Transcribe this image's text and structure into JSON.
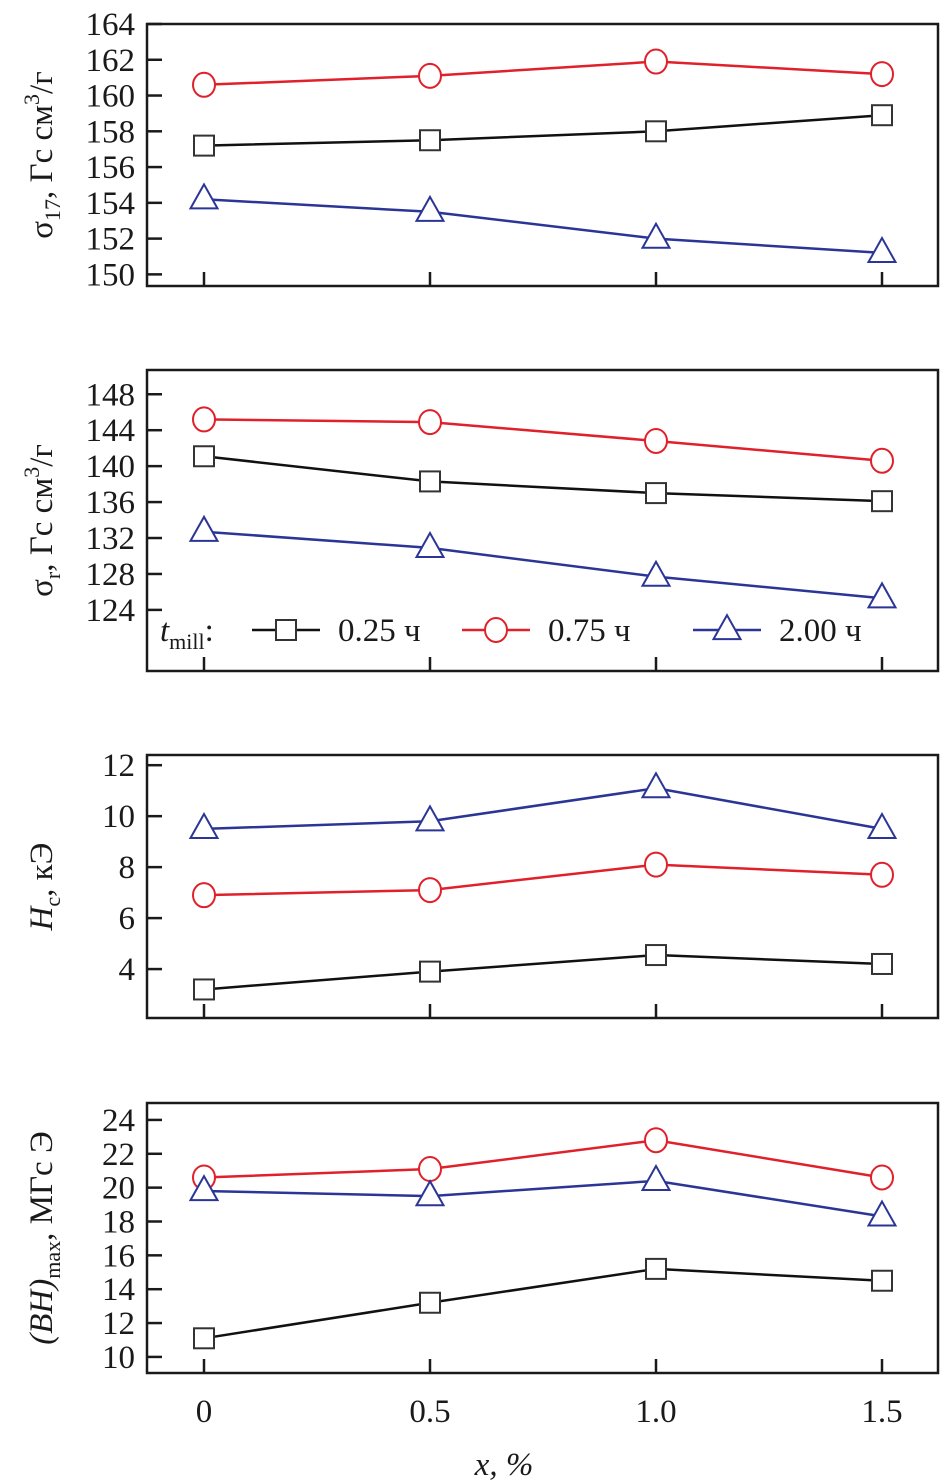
{
  "chart_data": [
    {
      "type": "line",
      "title": "",
      "ylabel": "σ17, Гс см³/г",
      "ylabel_parts": {
        "main": "σ",
        "sub": "17",
        "unit": ", Гс см",
        "sup": "3",
        "tail": "/г"
      },
      "xlabel": "",
      "x": [
        0,
        0.5,
        1.0,
        1.5
      ],
      "xlim": [
        -0.13,
        1.62
      ],
      "ylim": [
        164,
        149.35
      ],
      "yticks": [
        150,
        152,
        154,
        156,
        158,
        160,
        162,
        164
      ],
      "grid": false,
      "series": [
        {
          "name": "0.25 ч",
          "marker": "square",
          "color": "#111111",
          "values": [
            157.2,
            157.5,
            158.0,
            158.9
          ]
        },
        {
          "name": "0.75 ч",
          "marker": "circle",
          "color": "#e0202a",
          "values": [
            160.6,
            161.1,
            161.9,
            161.2
          ]
        },
        {
          "name": "2.00 ч",
          "marker": "triangle",
          "color": "#2b3595",
          "values": [
            154.2,
            153.5,
            152.0,
            151.2
          ]
        }
      ]
    },
    {
      "type": "line",
      "title": "",
      "ylabel": "σr, Гс см³/г",
      "ylabel_parts": {
        "main": "σ",
        "sub": "r",
        "unit": ", Гс см",
        "sup": "3",
        "tail": "/г"
      },
      "xlabel": "",
      "x": [
        0,
        0.5,
        1.0,
        1.5
      ],
      "xlim": [
        -0.13,
        1.62
      ],
      "ylim": [
        150.7,
        117.2
      ],
      "yticks": [
        124,
        128,
        132,
        136,
        140,
        144,
        148
      ],
      "grid": false,
      "series": [
        {
          "name": "0.25 ч",
          "marker": "square",
          "color": "#111111",
          "values": [
            141.1,
            138.3,
            137.0,
            136.1
          ]
        },
        {
          "name": "0.75 ч",
          "marker": "circle",
          "color": "#e0202a",
          "values": [
            145.2,
            144.9,
            142.8,
            140.6
          ]
        },
        {
          "name": "2.00 ч",
          "marker": "triangle",
          "color": "#2b3595",
          "values": [
            132.7,
            130.9,
            127.7,
            125.3
          ]
        }
      ],
      "legend": {
        "placement": "bottom",
        "title_main": "t",
        "title_sub": "mill",
        "title_tail": ":",
        "entries": [
          "0.25 ч",
          "0.75 ч",
          "2.00 ч"
        ]
      }
    },
    {
      "type": "line",
      "title": "",
      "ylabel": "Hc, кЭ",
      "ylabel_parts": {
        "main": "H",
        "sub": "c",
        "unit": ", кЭ"
      },
      "xlabel": "",
      "x": [
        0,
        0.5,
        1.0,
        1.5
      ],
      "xlim": [
        -0.13,
        1.62
      ],
      "ylim": [
        12.4,
        2.08
      ],
      "yticks": [
        4,
        6,
        8,
        10,
        12
      ],
      "grid": false,
      "series": [
        {
          "name": "0.25 ч",
          "marker": "square",
          "color": "#111111",
          "values": [
            3.2,
            3.9,
            4.55,
            4.2
          ]
        },
        {
          "name": "0.75 ч",
          "marker": "circle",
          "color": "#e0202a",
          "values": [
            6.9,
            7.1,
            8.1,
            7.7
          ]
        },
        {
          "name": "2.00 ч",
          "marker": "triangle",
          "color": "#2b3595",
          "values": [
            9.5,
            9.8,
            11.1,
            9.5
          ]
        }
      ]
    },
    {
      "type": "line",
      "title": "",
      "ylabel": "(BH)max, МГс Э",
      "ylabel_parts": {
        "main": "(BH)",
        "sub": "max",
        "unit": ", МГс Э"
      },
      "xlabel": "x, %",
      "xticks": [
        "0",
        "0.5",
        "1.0",
        "1.5"
      ],
      "x": [
        0,
        0.5,
        1.0,
        1.5
      ],
      "xlim": [
        -0.13,
        1.62
      ],
      "ylim": [
        25.0,
        9.05
      ],
      "yticks": [
        10,
        12,
        14,
        16,
        18,
        20,
        22,
        24
      ],
      "grid": false,
      "series": [
        {
          "name": "0.25 ч",
          "marker": "square",
          "color": "#111111",
          "values": [
            11.1,
            13.2,
            15.2,
            14.5
          ]
        },
        {
          "name": "0.75 ч",
          "marker": "circle",
          "color": "#e0202a",
          "values": [
            20.6,
            21.1,
            22.8,
            20.6
          ]
        },
        {
          "name": "2.00 ч",
          "marker": "triangle",
          "color": "#2b3595",
          "values": [
            19.8,
            19.5,
            20.4,
            18.3
          ]
        }
      ]
    }
  ]
}
